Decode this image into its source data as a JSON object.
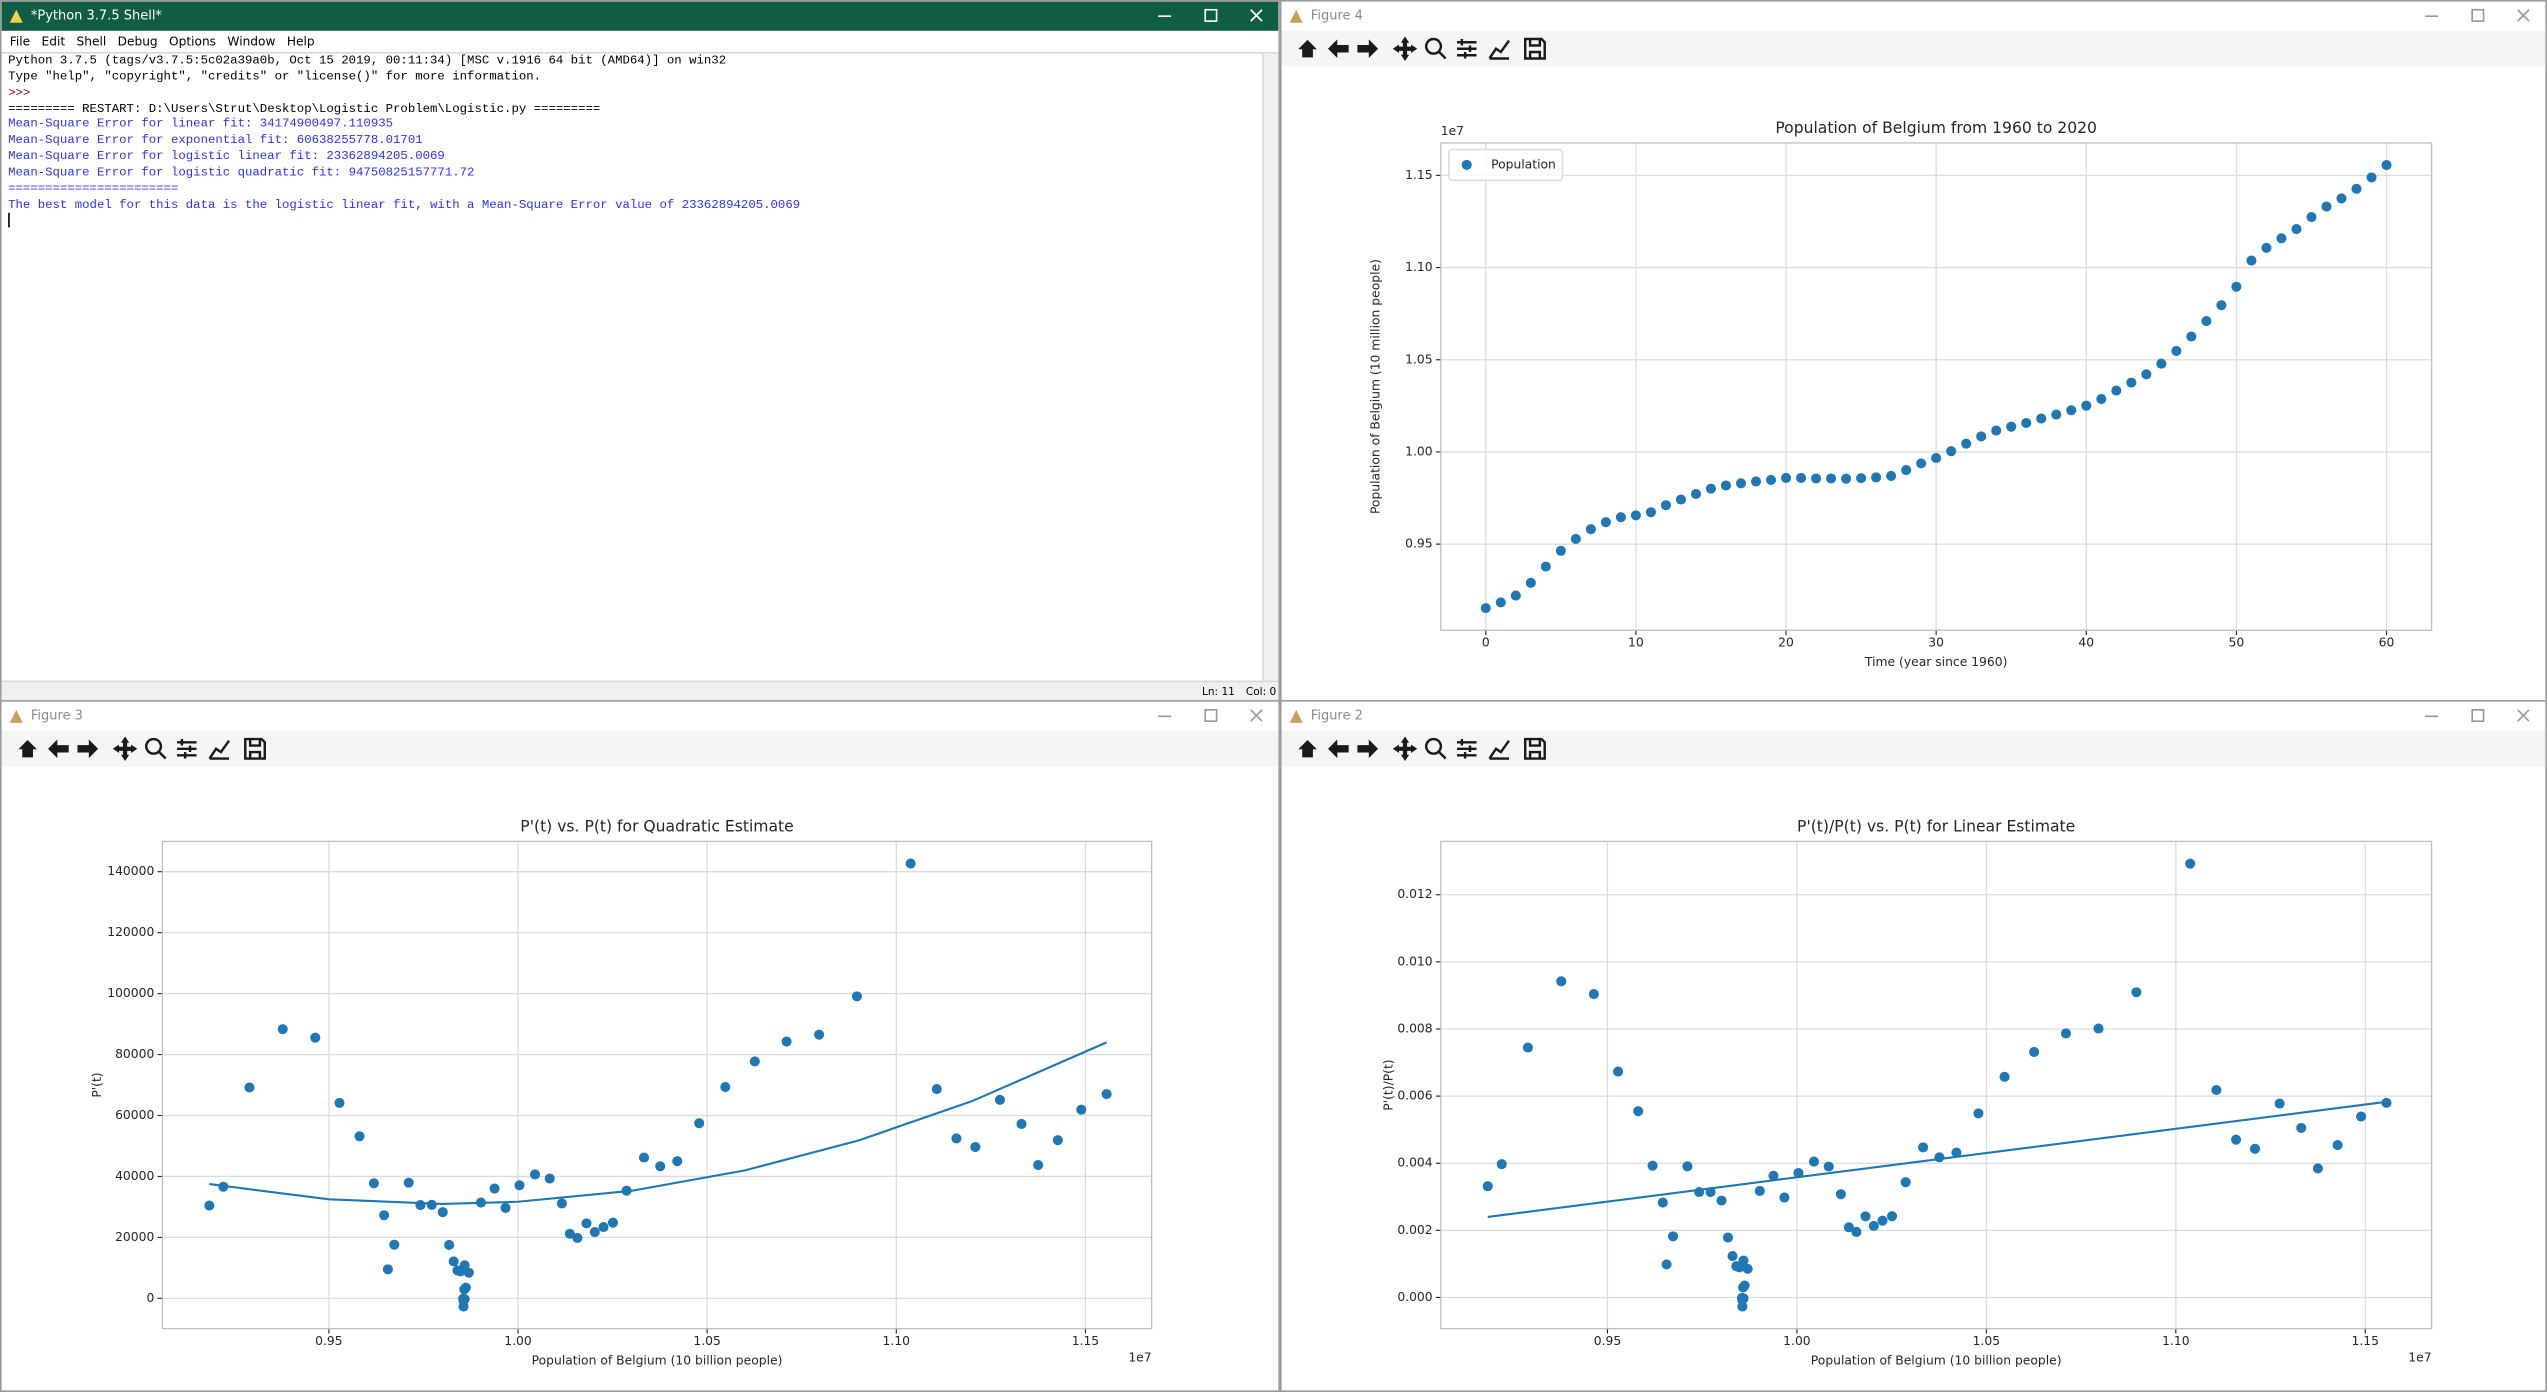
{
  "shell": {
    "title": "*Python 3.7.5 Shell*",
    "menu": [
      "File",
      "Edit",
      "Shell",
      "Debug",
      "Options",
      "Window",
      "Help"
    ],
    "lines": [
      {
        "text": "Python 3.7.5 (tags/v3.7.5:5c02a39a0b, Oct 15 2019, 00:11:34) [MSC v.1916 64 bit (AMD64)] on win32",
        "color": "#000000"
      },
      {
        "text": "Type \"help\", \"copyright\", \"credits\" or \"license()\" for more information.",
        "color": "#000000"
      },
      {
        "text": ">>>",
        "color": "#8b0000"
      },
      {
        "text": "========= RESTART: D:\\Users\\Strut\\Desktop\\Logistic Problem\\Logistic.py =========",
        "color": "#000000"
      },
      {
        "text": "Mean-Square Error for linear fit: 34174900497.110935",
        "color": "#2f2fff"
      },
      {
        "text": "Mean-Square Error for exponential fit: 60638255778.01701",
        "color": "#2f2fff"
      },
      {
        "text": "Mean-Square Error for logistic linear fit: 23362894205.0069",
        "color": "#2f2fff"
      },
      {
        "text": "Mean-Square Error for logistic quadratic fit: 94750825157771.72",
        "color": "#2f2fff"
      },
      {
        "text": "=======================",
        "color": "#2f2fff"
      },
      {
        "text": "The best model for this data is the logistic linear fit, with a Mean-Square Error value of 23362894205.0069",
        "color": "#2f2fff"
      }
    ],
    "status": [
      "Ln: 11",
      "Col: 0"
    ]
  },
  "figure_windows": [
    "Figure 4",
    "Figure 3",
    "Figure 2"
  ],
  "chart_data": [
    {
      "type": "scatter",
      "title": "Population of Belgium from 1960 to 2020",
      "x_label": "Time (year since 1960)",
      "y_label": "Population of Belgium (10 million people)",
      "y_offset_label": "1e7",
      "x": [
        0,
        1,
        2,
        3,
        4,
        5,
        6,
        7,
        8,
        9,
        10,
        11,
        12,
        13,
        14,
        15,
        16,
        17,
        18,
        19,
        20,
        21,
        22,
        23,
        24,
        25,
        26,
        27,
        28,
        29,
        30,
        31,
        32,
        33,
        34,
        35,
        36,
        37,
        38,
        39,
        40,
        41,
        42,
        43,
        44,
        45,
        46,
        47,
        48,
        49,
        50,
        51,
        52,
        53,
        54,
        55,
        56,
        57,
        58,
        59,
        60
      ],
      "series": [
        {
          "name": "Population",
          "color": "#1f77b4",
          "values": [
            0.9153,
            0.9184,
            0.9221,
            0.929,
            0.9378,
            0.9464,
            0.9528,
            0.9581,
            0.9619,
            0.9646,
            0.9656,
            0.9673,
            0.9711,
            0.9742,
            0.9772,
            0.9801,
            0.9818,
            0.983,
            0.984,
            0.9848,
            0.9859,
            0.9859,
            0.9856,
            0.9856,
            0.9855,
            0.9858,
            0.9862,
            0.987,
            0.9902,
            0.9938,
            0.9967,
            1.0004,
            1.0045,
            1.0084,
            1.0116,
            1.0137,
            1.0157,
            1.0181,
            1.0203,
            1.0226,
            1.0251,
            1.0287,
            1.0333,
            1.0376,
            1.0421,
            1.0479,
            1.0548,
            1.0626,
            1.071,
            1.0796,
            1.0896,
            1.1038,
            1.1107,
            1.1159,
            1.1209,
            1.1274,
            1.1331,
            1.1375,
            1.1427,
            1.1489,
            1.1556
          ]
        }
      ],
      "xlim": [
        -3,
        63
      ],
      "xticks": [
        0,
        10,
        20,
        30,
        40,
        50,
        60
      ],
      "ylim": [
        0.9033,
        1.1676
      ],
      "yticks": [
        0.95,
        {
          "value": 1,
          "label": "1.00"
        },
        1.05,
        {
          "value": 1.1,
          "label": "1.10"
        },
        1.15
      ],
      "grid": true,
      "legend": "upper left"
    },
    {
      "type": "scatter",
      "title": "P'(t) vs. P(t) for Quadratic Estimate",
      "x_label": "Population of Belgium (10 billion people)",
      "y_label": "P'(t)",
      "x_offset_label": "1e7",
      "x": [
        0.9184,
        0.9221,
        0.929,
        0.9378,
        0.9464,
        0.9528,
        0.9581,
        0.9619,
        0.9646,
        0.9656,
        0.9673,
        0.9711,
        0.9742,
        0.9772,
        0.9801,
        0.9818,
        0.983,
        0.984,
        0.9848,
        0.9859,
        0.9859,
        0.9856,
        0.9856,
        0.9855,
        0.9858,
        0.9862,
        0.987,
        0.9902,
        0.9938,
        0.9967,
        1.0004,
        1.0045,
        1.0084,
        1.0116,
        1.0137,
        1.0157,
        1.0181,
        1.0203,
        1.0226,
        1.0251,
        1.0287,
        1.0333,
        1.0376,
        1.0421,
        1.0479,
        1.0548,
        1.0626,
        1.071,
        1.0796,
        1.0896,
        1.1038,
        1.1107,
        1.1159,
        1.1209,
        1.1274,
        1.1331,
        1.1375,
        1.1427,
        1.1489,
        1.1556
      ],
      "series": [
        {
          "color": "#1f77b4",
          "values": [
            30459,
            36630,
            69192,
            88343,
            85554,
            64140,
            53184,
            37765,
            27276,
            9517,
            17613,
            37953,
            30605,
            30699,
            28281,
            17527,
            12131,
            9176,
            8848,
            10860,
            -260,
            -2679,
            -783,
            -148,
            2936,
            3515,
            8411,
            31430,
            36033,
            29682,
            37107,
            40672,
            39317,
            31128,
            21208,
            19826,
            24608,
            21763,
            23411,
            24831,
            35320,
            46215,
            43348,
            45004,
            57480,
            69341,
            77742,
            84273,
            86520,
            99093,
            142678,
            68668,
            52475,
            49650,
            65139,
            57226,
            43736,
            51896,
            61926,
            67017
          ]
        },
        {
          "type": "line",
          "color": "#1f77b4",
          "x": [
            0.9184,
            0.95,
            0.98,
            1.0,
            1.03,
            1.06,
            1.09,
            1.12,
            1.1556
          ],
          "values": [
            37500,
            32500,
            31000,
            31700,
            35300,
            42000,
            51800,
            64700,
            84000
          ]
        }
      ],
      "xlim": [
        0.906,
        1.1675
      ],
      "xticks": [
        0.95,
        {
          "value": 1,
          "label": "1.00"
        },
        1.05,
        {
          "value": 1.1,
          "label": "1.10"
        },
        1.15
      ],
      "ylim": [
        -9947,
        149946
      ],
      "yticks": [
        0,
        20000,
        40000,
        60000,
        80000,
        100000,
        120000,
        140000
      ],
      "grid": true
    },
    {
      "type": "scatter",
      "title": "P'(t)/P(t) vs. P(t) for Linear Estimate",
      "x_label": "Population of Belgium (10 billion people)",
      "y_label": "P'(t)/P(t)",
      "x_offset_label": "1e7",
      "x": [
        0.9184,
        0.9221,
        0.929,
        0.9378,
        0.9464,
        0.9528,
        0.9581,
        0.9619,
        0.9646,
        0.9656,
        0.9673,
        0.9711,
        0.9742,
        0.9772,
        0.9801,
        0.9818,
        0.983,
        0.984,
        0.9848,
        0.9859,
        0.9859,
        0.9856,
        0.9856,
        0.9855,
        0.9858,
        0.9862,
        0.987,
        0.9902,
        0.9938,
        0.9967,
        1.0004,
        1.0045,
        1.0084,
        1.0116,
        1.0137,
        1.0157,
        1.0181,
        1.0203,
        1.0226,
        1.0251,
        1.0287,
        1.0333,
        1.0376,
        1.0421,
        1.0479,
        1.0548,
        1.0626,
        1.071,
        1.0796,
        1.0896,
        1.1038,
        1.1107,
        1.1159,
        1.1209,
        1.1274,
        1.1331,
        1.1375,
        1.1427,
        1.1489,
        1.1556
      ],
      "series": [
        {
          "color": "#1f77b4",
          "values": [
            0.003317,
            0.003973,
            0.007448,
            0.00942,
            0.00904,
            0.006732,
            0.005551,
            0.003926,
            0.002828,
            0.000986,
            0.001821,
            0.003908,
            0.003142,
            0.003141,
            0.002886,
            0.001785,
            0.001234,
            0.000933,
            0.000898,
            0.001101,
            -2.64e-05,
            -0.000272,
            -7.94e-05,
            -1.5e-05,
            0.000298,
            0.000356,
            0.000852,
            0.003174,
            0.003626,
            0.002978,
            0.003709,
            0.004049,
            0.003899,
            0.003077,
            0.002092,
            0.001952,
            0.002417,
            0.002133,
            0.002289,
            0.002422,
            0.003434,
            0.004473,
            0.004178,
            0.004318,
            0.005485,
            0.006574,
            0.007316,
            0.007869,
            0.008014,
            0.009095,
            0.012926,
            0.006182,
            0.004702,
            0.004429,
            0.005778,
            0.00505,
            0.003845,
            0.004541,
            0.00539,
            0.005799
          ]
        },
        {
          "type": "line",
          "color": "#1f77b4",
          "x": [
            0.9184,
            1.1556
          ],
          "values": [
            0.0024,
            0.00583
          ]
        }
      ],
      "xlim": [
        0.906,
        1.1675
      ],
      "xticks": [
        0.95,
        {
          "value": 1,
          "label": "1.00"
        },
        1.05,
        {
          "value": 1.1,
          "label": "1.10"
        },
        1.15
      ],
      "ylim": [
        -0.00093,
        0.01359
      ],
      "yticks": [
        {
          "value": 0,
          "label": "0.000"
        },
        0.002,
        0.004,
        0.006,
        0.008,
        {
          "value": 0.01,
          "label": "0.010"
        },
        0.012
      ],
      "grid": true
    }
  ]
}
